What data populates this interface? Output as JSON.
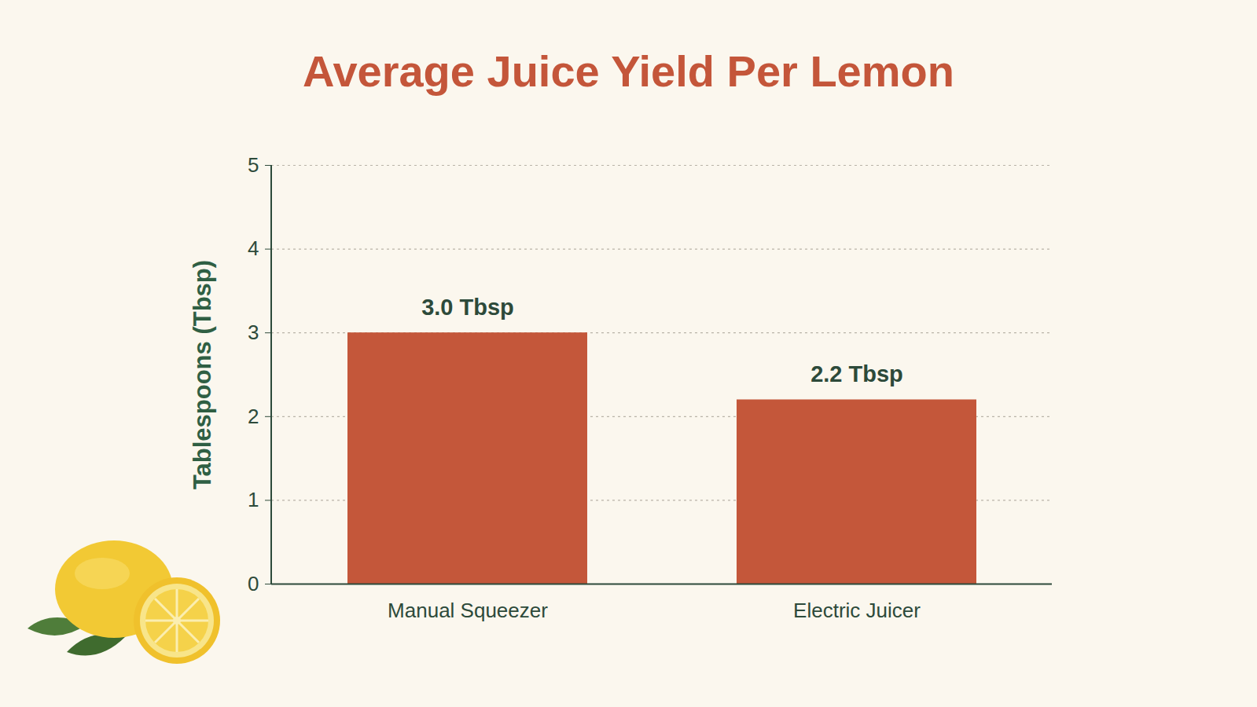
{
  "chart_data": {
    "type": "bar",
    "title": "Average Juice Yield Per Lemon",
    "y_label": "Tablespoons (Tbsp)",
    "categories": [
      "Manual Squeezer",
      "Electric Juicer"
    ],
    "values": [
      3.0,
      2.2
    ],
    "value_labels": [
      "3.0 Tbsp",
      "2.2 Tbsp"
    ],
    "color": "#c4573a",
    "ylim": [
      0,
      5
    ],
    "yticks": [
      0,
      1,
      2,
      3,
      4,
      5
    ],
    "grid": true,
    "data_labels": true
  }
}
